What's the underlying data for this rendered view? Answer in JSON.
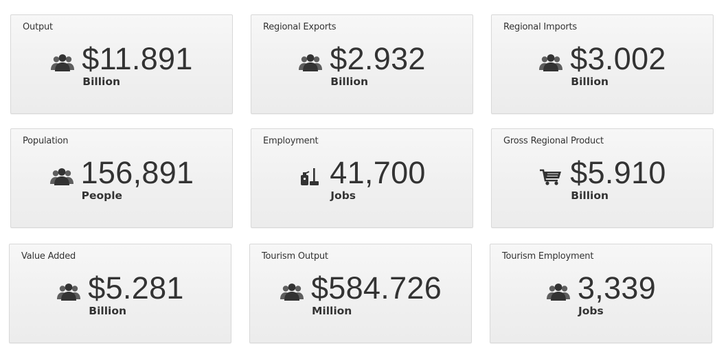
{
  "cards": [
    {
      "title": "Output",
      "value": "$11.891",
      "unit": "Billion",
      "icon": "people-icon"
    },
    {
      "title": "Regional Exports",
      "value": "$2.932",
      "unit": "Billion",
      "icon": "people-icon"
    },
    {
      "title": "Regional Imports",
      "value": "$3.002",
      "unit": "Billion",
      "icon": "people-icon"
    },
    {
      "title": "Population",
      "value": "156,891",
      "unit": "People",
      "icon": "people-icon"
    },
    {
      "title": "Employment",
      "value": "41,700",
      "unit": "Jobs",
      "icon": "cleaning-tools-icon"
    },
    {
      "title": "Gross Regional Product",
      "value": "$5.910",
      "unit": "Billion",
      "icon": "shopping-cart-icon"
    },
    {
      "title": "Value Added",
      "value": "$5.281",
      "unit": "Billion",
      "icon": "people-icon"
    },
    {
      "title": "Tourism Output",
      "value": "$584.726",
      "unit": "Million",
      "icon": "people-icon"
    },
    {
      "title": "Tourism Employment",
      "value": "3,339",
      "unit": "Jobs",
      "icon": "people-icon"
    }
  ],
  "colors": {
    "text": "#333333",
    "icon": "#3a3a3a",
    "card_border": "#d8d8d8",
    "card_bg": "#f2f2f2"
  }
}
